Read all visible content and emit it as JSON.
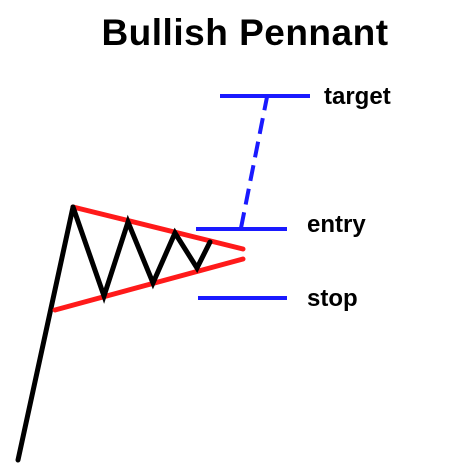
{
  "title": "Bullish Pennant",
  "levels": {
    "target": "target",
    "entry": "entry",
    "stop": "stop"
  },
  "colors": {
    "flagpole": "#000000",
    "trendlines": "#ff1a1a",
    "levels": "#1a1aff",
    "text": "#000000",
    "background": "#ffffff"
  }
}
